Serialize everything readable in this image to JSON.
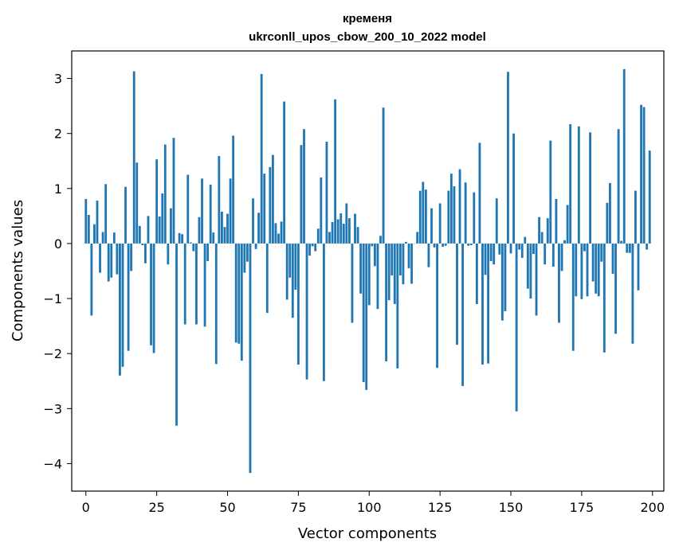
{
  "chart_data": {
    "type": "bar",
    "title": "кременя",
    "subtitle": "ukrconll_upos_cbow_200_10_2022 model",
    "xlabel": "Vector components",
    "ylabel": "Components values",
    "xlim": [
      -5,
      204
    ],
    "ylim": [
      -4.5,
      3.5
    ],
    "xticks": [
      0,
      25,
      50,
      75,
      100,
      125,
      150,
      175,
      200
    ],
    "yticks": [
      -4,
      -3,
      -2,
      -1,
      0,
      1,
      2,
      3
    ],
    "ytick_labels": [
      "−4",
      "−3",
      "−2",
      "−1",
      "0",
      "1",
      "2",
      "3"
    ],
    "xtick_labels": [
      "0",
      "25",
      "50",
      "75",
      "100",
      "125",
      "150",
      "175",
      "200"
    ],
    "grid": false,
    "bar_color": "#1f77b4",
    "values": [
      0.81,
      0.52,
      -1.31,
      0.35,
      0.78,
      -0.53,
      0.21,
      1.08,
      -0.69,
      -0.62,
      0.2,
      -0.56,
      -2.4,
      -2.24,
      1.03,
      -1.95,
      -0.5,
      3.13,
      1.47,
      0.32,
      -0.03,
      -0.36,
      0.5,
      -1.85,
      -1.99,
      1.53,
      0.49,
      0.91,
      1.8,
      -0.38,
      0.64,
      1.92,
      -3.31,
      0.19,
      0.17,
      -1.47,
      1.25,
      0.02,
      -0.14,
      -1.47,
      0.48,
      1.18,
      -1.51,
      -0.32,
      1.07,
      0.2,
      -2.19,
      1.59,
      0.58,
      0.3,
      0.54,
      1.18,
      1.96,
      -1.8,
      -1.82,
      -2.13,
      -0.53,
      -0.33,
      -4.17,
      0.82,
      -0.1,
      0.56,
      3.08,
      1.27,
      -1.26,
      1.39,
      1.61,
      0.37,
      0.18,
      0.4,
      2.58,
      -1.02,
      -0.62,
      -1.35,
      -0.84,
      -2.2,
      1.79,
      2.08,
      -2.47,
      -0.22,
      -0.05,
      -0.14,
      0.27,
      1.2,
      -2.5,
      1.85,
      0.21,
      0.39,
      2.62,
      0.44,
      0.55,
      0.36,
      0.73,
      0.46,
      -1.44,
      0.54,
      0.3,
      -0.91,
      -2.52,
      -2.66,
      -1.12,
      -0.05,
      -0.41,
      -1.19,
      0.14,
      2.47,
      -2.14,
      -1.03,
      -0.58,
      -1.1,
      -2.27,
      -0.58,
      -0.74,
      0.03,
      -0.45,
      -0.73,
      0.0,
      0.21,
      0.96,
      1.12,
      0.98,
      -0.43,
      0.64,
      -0.07,
      -2.26,
      0.73,
      -0.06,
      -0.04,
      0.96,
      1.27,
      1.04,
      -1.84,
      1.35,
      -2.59,
      1.11,
      -0.04,
      -0.03,
      0.93,
      -1.1,
      1.83,
      -2.2,
      -0.57,
      -2.18,
      -0.32,
      -0.38,
      0.82,
      -0.2,
      -1.4,
      -1.23,
      3.12,
      -0.18,
      2.0,
      -3.05,
      -0.11,
      -0.26,
      0.12,
      -0.82,
      -1.0,
      -0.19,
      -1.31,
      0.48,
      0.21,
      -0.38,
      0.46,
      1.87,
      -0.42,
      0.81,
      -1.44,
      -0.5,
      0.06,
      0.7,
      2.17,
      -1.95,
      -0.96,
      2.13,
      -1.01,
      -0.14,
      -0.96,
      2.02,
      -0.69,
      -0.91,
      -0.96,
      -0.33,
      -1.98,
      0.74,
      1.1,
      -0.55,
      -1.64,
      2.08,
      0.05,
      3.17,
      -0.17,
      -0.17,
      -1.82,
      0.96,
      -0.85,
      2.52,
      2.48,
      -0.11,
      1.69
    ]
  }
}
